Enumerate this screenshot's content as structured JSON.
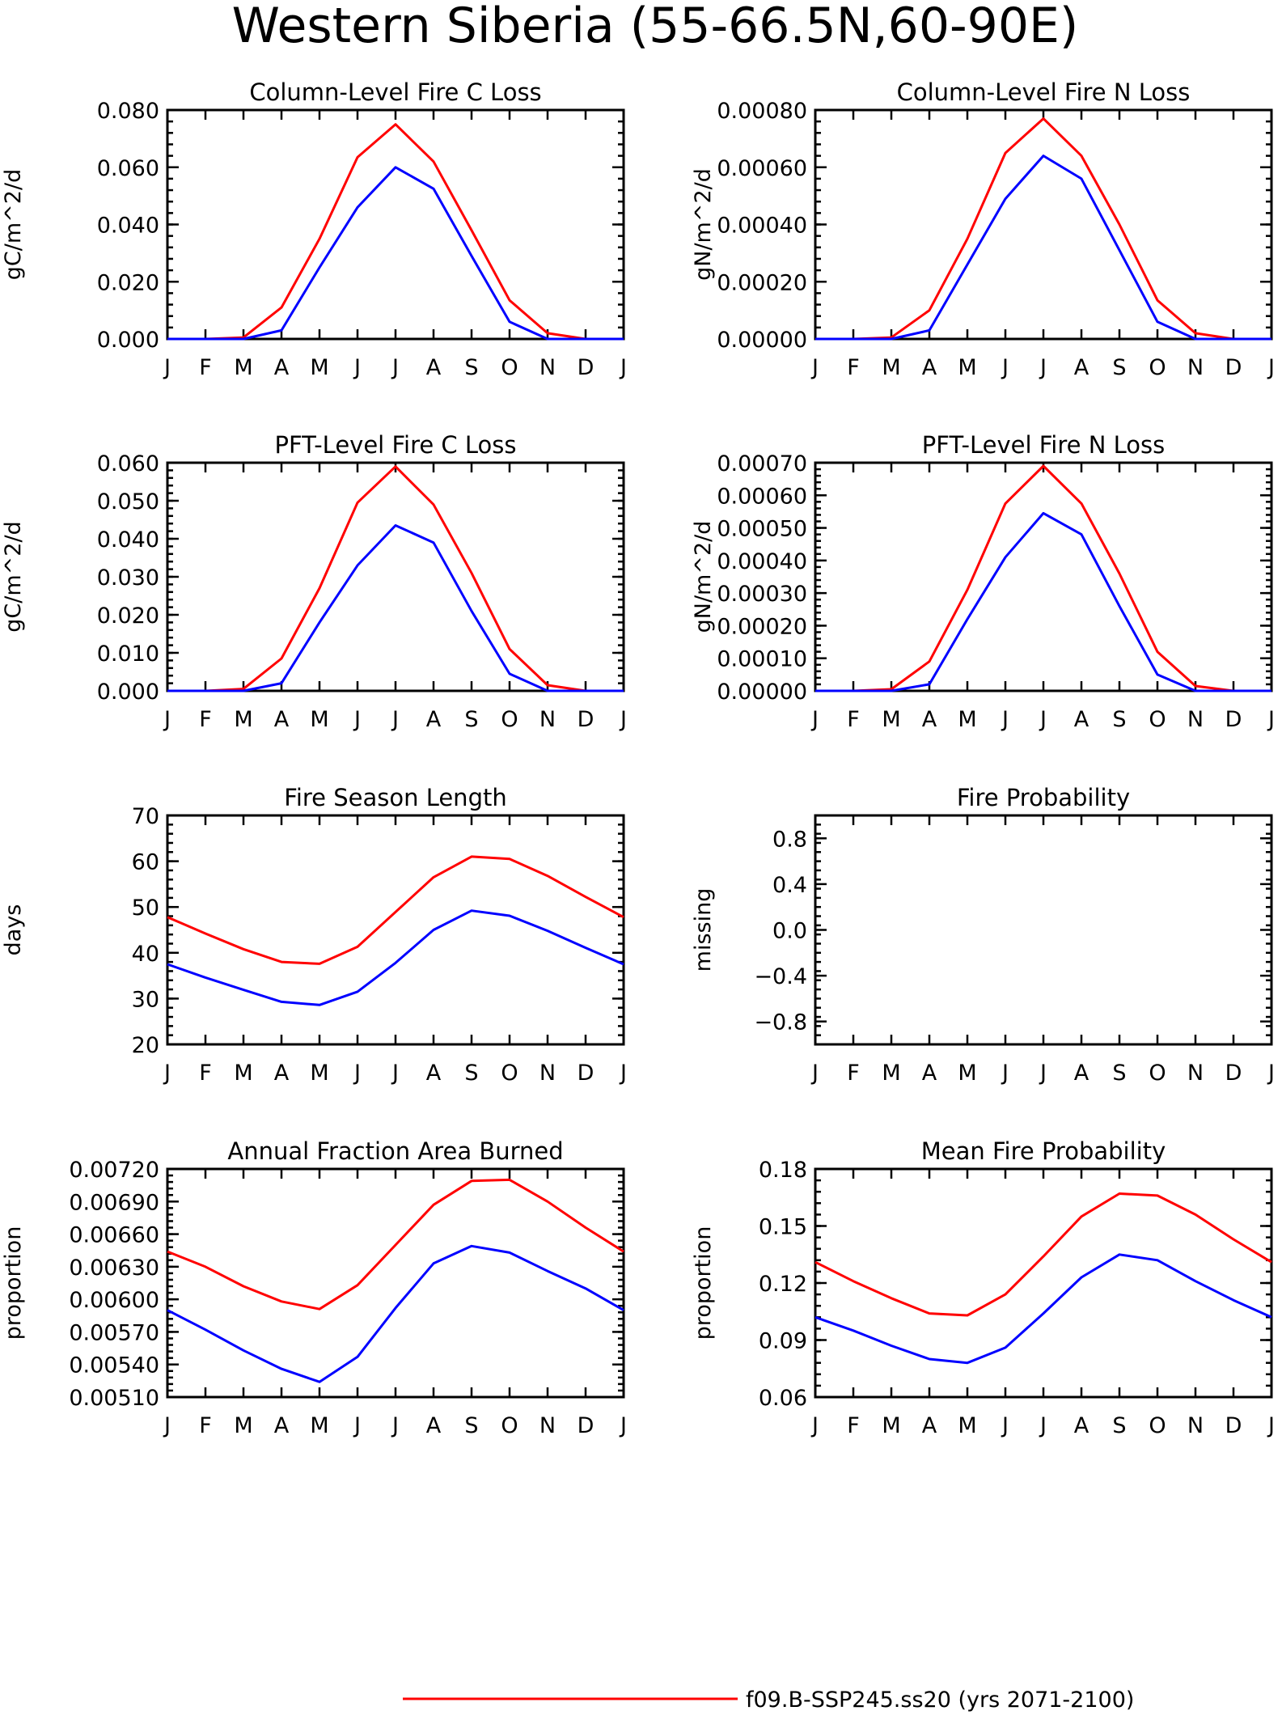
{
  "figure": {
    "title": "Western Siberia (55-66.5N,60-90E)"
  },
  "colors": {
    "run1": "#ff0000",
    "run2": "#0000ff"
  },
  "legend": {
    "entries": [
      {
        "label": "f09.B-SSP245.ss20 (yrs 2071-2100)",
        "color": "#ff0000"
      }
    ]
  },
  "chart_data": [
    {
      "id": "col-c",
      "type": "line",
      "title": "Column-Level Fire C Loss",
      "ylabel": "gC/m^2/d",
      "categories": [
        "J",
        "F",
        "M",
        "A",
        "M",
        "J",
        "J",
        "A",
        "S",
        "O",
        "N",
        "D",
        "J"
      ],
      "ylim": [
        0,
        0.08
      ],
      "yticks": [
        "0.000",
        "0.020",
        "0.040",
        "0.060",
        "0.080"
      ],
      "ytick_values": [
        0,
        0.02,
        0.04,
        0.06,
        0.08
      ],
      "series": [
        {
          "color": "#ff0000",
          "values": [
            0,
            0,
            0.0005,
            0.011,
            0.035,
            0.0635,
            0.075,
            0.062,
            0.038,
            0.0135,
            0.002,
            0,
            0
          ]
        },
        {
          "color": "#0000ff",
          "values": [
            0,
            0,
            0,
            0.003,
            0.025,
            0.046,
            0.06,
            0.0525,
            0.029,
            0.006,
            0,
            0,
            0
          ]
        }
      ]
    },
    {
      "id": "col-n",
      "type": "line",
      "title": "Column-Level Fire N Loss",
      "ylabel": "gN/m^2/d",
      "categories": [
        "J",
        "F",
        "M",
        "A",
        "M",
        "J",
        "J",
        "A",
        "S",
        "O",
        "N",
        "D",
        "J"
      ],
      "ylim": [
        0,
        0.0008
      ],
      "yticks": [
        "0.00000",
        "0.00020",
        "0.00040",
        "0.00060",
        "0.00080"
      ],
      "ytick_values": [
        0,
        0.0002,
        0.0004,
        0.0006,
        0.0008
      ],
      "series": [
        {
          "color": "#ff0000",
          "values": [
            0,
            0,
            5e-06,
            0.0001,
            0.00035,
            0.00065,
            0.00077,
            0.00064,
            0.0004,
            0.000135,
            2e-05,
            0,
            0
          ]
        },
        {
          "color": "#0000ff",
          "values": [
            0,
            0,
            0,
            3e-05,
            0.00026,
            0.00049,
            0.00064,
            0.00056,
            0.00031,
            6e-05,
            0,
            0,
            0
          ]
        }
      ]
    },
    {
      "id": "pft-c",
      "type": "line",
      "title": "PFT-Level Fire C Loss",
      "ylabel": "gC/m^2/d",
      "categories": [
        "J",
        "F",
        "M",
        "A",
        "M",
        "J",
        "J",
        "A",
        "S",
        "O",
        "N",
        "D",
        "J"
      ],
      "ylim": [
        0,
        0.06
      ],
      "yticks": [
        "0.000",
        "0.010",
        "0.020",
        "0.030",
        "0.040",
        "0.050",
        "0.060"
      ],
      "ytick_values": [
        0,
        0.01,
        0.02,
        0.03,
        0.04,
        0.05,
        0.06
      ],
      "series": [
        {
          "color": "#ff0000",
          "values": [
            0,
            0,
            0.0005,
            0.0085,
            0.027,
            0.0495,
            0.059,
            0.049,
            0.031,
            0.011,
            0.0015,
            0,
            0
          ]
        },
        {
          "color": "#0000ff",
          "values": [
            0,
            0,
            0,
            0.002,
            0.018,
            0.033,
            0.0435,
            0.039,
            0.021,
            0.0045,
            0,
            0,
            0
          ]
        }
      ]
    },
    {
      "id": "pft-n",
      "type": "line",
      "title": "PFT-Level Fire N Loss",
      "ylabel": "gN/m^2/d",
      "categories": [
        "J",
        "F",
        "M",
        "A",
        "M",
        "J",
        "J",
        "A",
        "S",
        "O",
        "N",
        "D",
        "J"
      ],
      "ylim": [
        0,
        0.0007
      ],
      "yticks": [
        "0.00000",
        "0.00010",
        "0.00020",
        "0.00030",
        "0.00040",
        "0.00050",
        "0.00060",
        "0.00070"
      ],
      "ytick_values": [
        0,
        0.0001,
        0.0002,
        0.0003,
        0.0004,
        0.0005,
        0.0006,
        0.0007
      ],
      "series": [
        {
          "color": "#ff0000",
          "values": [
            0,
            0,
            5e-06,
            9e-05,
            0.00031,
            0.000575,
            0.00069,
            0.000575,
            0.00036,
            0.00012,
            1.5e-05,
            0,
            0
          ]
        },
        {
          "color": "#0000ff",
          "values": [
            0,
            0,
            0,
            2e-05,
            0.00022,
            0.00041,
            0.000545,
            0.00048,
            0.00026,
            5e-05,
            0,
            0,
            0
          ]
        }
      ]
    },
    {
      "id": "season",
      "type": "line",
      "title": "Fire Season Length",
      "ylabel": "days",
      "categories": [
        "J",
        "F",
        "M",
        "A",
        "M",
        "J",
        "J",
        "A",
        "S",
        "O",
        "N",
        "D",
        "J"
      ],
      "ylim": [
        20,
        70
      ],
      "yticks": [
        "20",
        "30",
        "40",
        "50",
        "60",
        "70"
      ],
      "ytick_values": [
        20,
        30,
        40,
        50,
        60,
        70
      ],
      "series": [
        {
          "color": "#ff0000",
          "values": [
            47.8,
            44.2,
            40.8,
            38,
            37.6,
            41.3,
            48.9,
            56.5,
            61,
            60.5,
            56.8,
            52.2,
            47.8
          ]
        },
        {
          "color": "#0000ff",
          "values": [
            37.5,
            34.6,
            31.9,
            29.3,
            28.6,
            31.5,
            37.8,
            45,
            49.2,
            48.1,
            44.8,
            41.1,
            37.5
          ]
        }
      ]
    },
    {
      "id": "prob",
      "type": "line",
      "title": "Fire Probability",
      "ylabel": "missing",
      "categories": [
        "J",
        "F",
        "M",
        "A",
        "M",
        "J",
        "J",
        "A",
        "S",
        "O",
        "N",
        "D",
        "J"
      ],
      "ylim": [
        -1,
        1
      ],
      "yticks": [
        "−0.8",
        "−0.4",
        "0.0",
        "0.4",
        "0.8"
      ],
      "ytick_values": [
        -0.8,
        -0.4,
        0,
        0.4,
        0.8
      ],
      "series": []
    },
    {
      "id": "afab",
      "type": "line",
      "title": "Annual Fraction Area Burned",
      "ylabel": "proportion",
      "categories": [
        "J",
        "F",
        "M",
        "A",
        "M",
        "J",
        "J",
        "A",
        "S",
        "O",
        "N",
        "D",
        "J"
      ],
      "ylim": [
        0.0051,
        0.0072
      ],
      "yticks": [
        "0.00510",
        "0.00540",
        "0.00570",
        "0.00600",
        "0.00630",
        "0.00660",
        "0.00690",
        "0.00720"
      ],
      "ytick_values": [
        0.0051,
        0.0054,
        0.0057,
        0.006,
        0.0063,
        0.0066,
        0.0069,
        0.0072
      ],
      "series": [
        {
          "color": "#ff0000",
          "values": [
            0.00644,
            0.0063,
            0.00612,
            0.00598,
            0.00591,
            0.00613,
            0.0065,
            0.00687,
            0.00709,
            0.0071,
            0.0069,
            0.00666,
            0.00644
          ]
        },
        {
          "color": "#0000ff",
          "values": [
            0.0059,
            0.00572,
            0.00553,
            0.00536,
            0.00524,
            0.00547,
            0.00592,
            0.00633,
            0.00649,
            0.00643,
            0.00626,
            0.0061,
            0.0059
          ]
        }
      ]
    },
    {
      "id": "mfp",
      "type": "line",
      "title": "Mean Fire Probability",
      "ylabel": "proportion",
      "categories": [
        "J",
        "F",
        "M",
        "A",
        "M",
        "J",
        "J",
        "A",
        "S",
        "O",
        "N",
        "D",
        "J"
      ],
      "ylim": [
        0.06,
        0.18
      ],
      "yticks": [
        "0.06",
        "0.09",
        "0.12",
        "0.15",
        "0.18"
      ],
      "ytick_values": [
        0.06,
        0.09,
        0.12,
        0.15,
        0.18
      ],
      "series": [
        {
          "color": "#ff0000",
          "values": [
            0.131,
            0.121,
            0.112,
            0.104,
            0.103,
            0.114,
            0.134,
            0.155,
            0.167,
            0.166,
            0.156,
            0.143,
            0.131
          ]
        },
        {
          "color": "#0000ff",
          "values": [
            0.102,
            0.095,
            0.087,
            0.08,
            0.078,
            0.086,
            0.104,
            0.123,
            0.135,
            0.132,
            0.121,
            0.111,
            0.102
          ]
        }
      ]
    }
  ]
}
